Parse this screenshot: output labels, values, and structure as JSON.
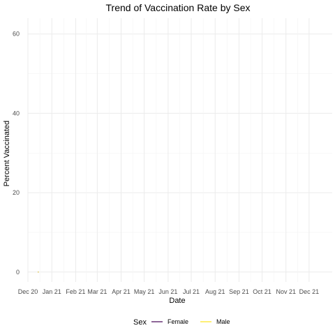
{
  "chart_data": {
    "type": "line",
    "title": "Trend of Vaccination Rate by Sex",
    "xlabel": "Date",
    "ylabel": "Percent Vaccinated",
    "x_ticks": [
      "Dec 20",
      "Jan 21",
      "Feb 21",
      "Mar 21",
      "Apr 21",
      "May 21",
      "Jun 21",
      "Jul 21",
      "Aug 21",
      "Sep 21",
      "Oct 21",
      "Nov 21",
      "Dec 21"
    ],
    "x_range": [
      "2020-12-01",
      "2021-12-31"
    ],
    "y_ticks": [
      0,
      20,
      40,
      60
    ],
    "ylim": [
      -2.5,
      64
    ],
    "grid": true,
    "legend": {
      "position": "bottom",
      "title": "Sex"
    },
    "series": [
      {
        "name": "Female",
        "color": "#440154",
        "x": [
          "2020-12-14",
          "2020-12-15"
        ],
        "y": [
          0,
          0
        ]
      },
      {
        "name": "Male",
        "color": "#fde725",
        "x": [
          "2020-12-14",
          "2020-12-15"
        ],
        "y": [
          0,
          0
        ]
      }
    ]
  }
}
